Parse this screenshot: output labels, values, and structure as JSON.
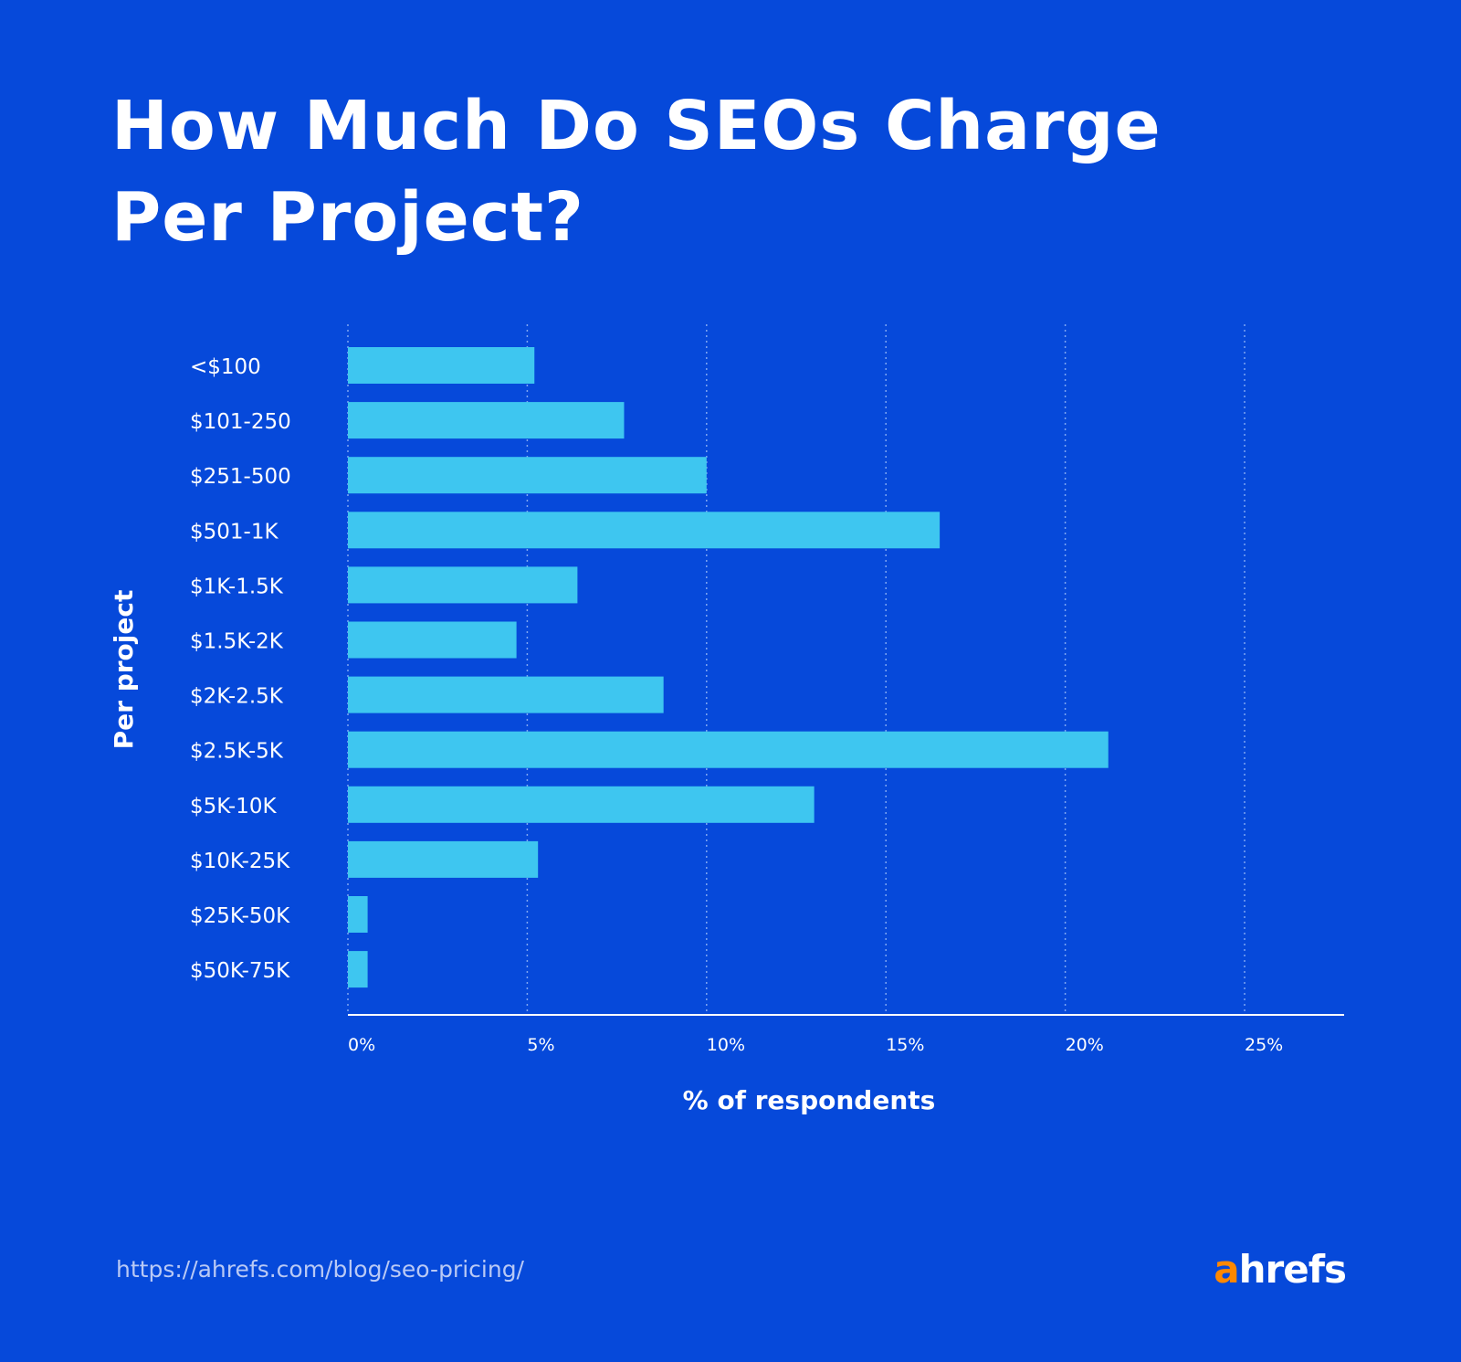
{
  "title_lines": [
    "How Much Do SEOs Charge",
    "Per Project?"
  ],
  "source_url": "https://ahrefs.com/blog/seo-pricing/",
  "logo": {
    "accent": "a",
    "rest": "hrefs",
    "accent_color": "#ff8800"
  },
  "colors": {
    "background": "#0649da",
    "bar": "#3ec6f0"
  },
  "chart_data": {
    "type": "bar",
    "orientation": "horizontal",
    "categories": [
      "<$100",
      "$101-250",
      "$251-500",
      "$501-1K",
      "$1K-1.5K",
      "$1.5K-2K",
      "$2K-2.5K",
      "$2.5K-5K",
      "$5K-10K",
      "$10K-25K",
      "$25K-50K",
      "$50K-75K"
    ],
    "values": [
      5.2,
      7.7,
      10.0,
      16.5,
      6.4,
      4.7,
      8.8,
      21.2,
      13.0,
      5.3,
      0.55,
      0.55
    ],
    "xlabel": "% of respondents",
    "ylabel": "Per project",
    "xlim": [
      0,
      28
    ],
    "xticks": [
      0,
      5,
      10,
      15,
      20,
      25
    ],
    "xtick_labels": [
      "0%",
      "5%",
      "10%",
      "15%",
      "20%",
      "25%"
    ],
    "grid": "vertical dotted"
  }
}
